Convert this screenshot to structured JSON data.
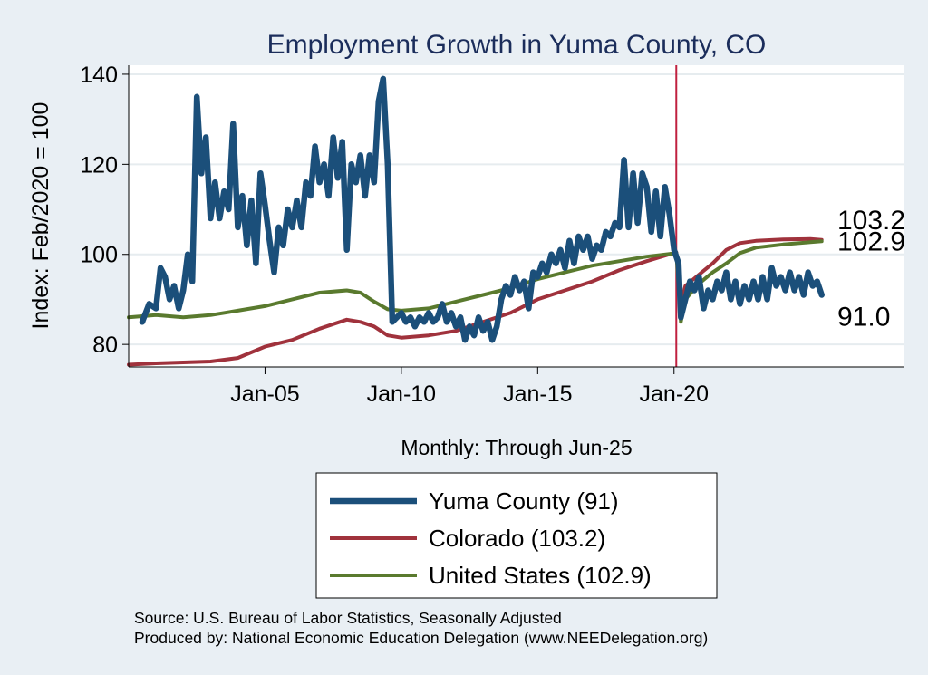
{
  "chart_data": {
    "type": "line",
    "title": "Employment Growth in Yuma  County, CO",
    "ylabel": "Index: Feb/2020 = 100",
    "xlabel": "Monthly: Through Jun-25",
    "ylim": [
      75,
      142
    ],
    "xlim": [
      "2000-01",
      "2028-06"
    ],
    "y_ticks": [
      80,
      100,
      120,
      140
    ],
    "x_ticks": [
      {
        "label": "Jan-05",
        "date": "2005-01"
      },
      {
        "label": "Jan-10",
        "date": "2010-01"
      },
      {
        "label": "Jan-15",
        "date": "2015-01"
      },
      {
        "label": "Jan-20",
        "date": "2020-01"
      }
    ],
    "grid": true,
    "reference_line": {
      "date": "2020-02",
      "color": "#c0203f"
    },
    "legend_position": "bottom",
    "series": [
      {
        "name": "Yuma  County (91)",
        "color": "#1b4f7a",
        "points": [
          [
            "2000-07",
            85
          ],
          [
            "2000-10",
            89
          ],
          [
            "2001-01",
            88
          ],
          [
            "2001-03",
            97
          ],
          [
            "2001-05",
            95
          ],
          [
            "2001-07",
            90
          ],
          [
            "2001-09",
            93
          ],
          [
            "2001-11",
            88
          ],
          [
            "2002-01",
            92
          ],
          [
            "2002-03",
            100
          ],
          [
            "2002-05",
            94
          ],
          [
            "2002-07",
            135
          ],
          [
            "2002-09",
            118
          ],
          [
            "2002-11",
            126
          ],
          [
            "2003-01",
            108
          ],
          [
            "2003-03",
            116
          ],
          [
            "2003-05",
            108
          ],
          [
            "2003-07",
            114
          ],
          [
            "2003-09",
            110
          ],
          [
            "2003-11",
            129
          ],
          [
            "2004-01",
            106
          ],
          [
            "2004-03",
            113
          ],
          [
            "2004-05",
            102
          ],
          [
            "2004-07",
            112
          ],
          [
            "2004-09",
            98
          ],
          [
            "2004-11",
            118
          ],
          [
            "2005-01",
            111
          ],
          [
            "2005-03",
            103
          ],
          [
            "2005-05",
            96
          ],
          [
            "2005-07",
            106
          ],
          [
            "2005-09",
            102
          ],
          [
            "2005-11",
            110
          ],
          [
            "2006-01",
            106
          ],
          [
            "2006-03",
            112
          ],
          [
            "2006-05",
            106
          ],
          [
            "2006-07",
            116
          ],
          [
            "2006-09",
            113
          ],
          [
            "2006-11",
            124
          ],
          [
            "2007-01",
            116
          ],
          [
            "2007-03",
            120
          ],
          [
            "2007-05",
            113
          ],
          [
            "2007-07",
            126
          ],
          [
            "2007-09",
            117
          ],
          [
            "2007-11",
            125
          ],
          [
            "2008-01",
            101
          ],
          [
            "2008-03",
            120
          ],
          [
            "2008-05",
            116
          ],
          [
            "2008-07",
            122
          ],
          [
            "2008-09",
            113
          ],
          [
            "2008-11",
            122
          ],
          [
            "2009-01",
            116
          ],
          [
            "2009-03",
            134
          ],
          [
            "2009-05",
            139
          ],
          [
            "2009-07",
            120
          ],
          [
            "2009-09",
            85
          ],
          [
            "2009-11",
            86
          ],
          [
            "2010-01",
            87
          ],
          [
            "2010-03",
            85
          ],
          [
            "2010-05",
            86
          ],
          [
            "2010-07",
            84
          ],
          [
            "2010-09",
            86
          ],
          [
            "2010-11",
            85
          ],
          [
            "2011-01",
            87
          ],
          [
            "2011-03",
            85
          ],
          [
            "2011-05",
            86
          ],
          [
            "2011-07",
            89
          ],
          [
            "2011-09",
            85
          ],
          [
            "2011-11",
            87
          ],
          [
            "2012-01",
            84
          ],
          [
            "2012-03",
            86
          ],
          [
            "2012-05",
            81
          ],
          [
            "2012-07",
            84
          ],
          [
            "2012-09",
            82
          ],
          [
            "2012-11",
            86
          ],
          [
            "2013-01",
            83
          ],
          [
            "2013-03",
            85
          ],
          [
            "2013-05",
            81
          ],
          [
            "2013-07",
            84
          ],
          [
            "2013-09",
            90
          ],
          [
            "2013-11",
            93
          ],
          [
            "2014-01",
            91
          ],
          [
            "2014-03",
            95
          ],
          [
            "2014-05",
            92
          ],
          [
            "2014-07",
            94
          ],
          [
            "2014-09",
            88
          ],
          [
            "2014-11",
            96
          ],
          [
            "2015-01",
            95
          ],
          [
            "2015-03",
            98
          ],
          [
            "2015-05",
            96
          ],
          [
            "2015-07",
            100
          ],
          [
            "2015-09",
            98
          ],
          [
            "2015-11",
            101
          ],
          [
            "2016-01",
            97
          ],
          [
            "2016-03",
            103
          ],
          [
            "2016-05",
            98
          ],
          [
            "2016-07",
            104
          ],
          [
            "2016-09",
            101
          ],
          [
            "2016-11",
            104
          ],
          [
            "2017-01",
            99
          ],
          [
            "2017-03",
            102
          ],
          [
            "2017-05",
            101
          ],
          [
            "2017-07",
            105
          ],
          [
            "2017-09",
            104
          ],
          [
            "2017-11",
            107
          ],
          [
            "2018-01",
            106
          ],
          [
            "2018-03",
            121
          ],
          [
            "2018-05",
            106
          ],
          [
            "2018-07",
            118
          ],
          [
            "2018-09",
            107
          ],
          [
            "2018-11",
            118
          ],
          [
            "2019-01",
            115
          ],
          [
            "2019-03",
            105
          ],
          [
            "2019-05",
            114
          ],
          [
            "2019-07",
            104
          ],
          [
            "2019-09",
            115
          ],
          [
            "2019-11",
            109
          ],
          [
            "2020-01",
            101
          ],
          [
            "2020-03",
            98
          ],
          [
            "2020-04",
            86
          ],
          [
            "2020-06",
            90
          ],
          [
            "2020-08",
            94
          ],
          [
            "2020-10",
            92
          ],
          [
            "2020-12",
            95
          ],
          [
            "2021-02",
            88
          ],
          [
            "2021-04",
            92
          ],
          [
            "2021-06",
            90
          ],
          [
            "2021-08",
            94
          ],
          [
            "2021-10",
            92
          ],
          [
            "2021-12",
            96
          ],
          [
            "2022-02",
            90
          ],
          [
            "2022-04",
            94
          ],
          [
            "2022-06",
            89
          ],
          [
            "2022-08",
            93
          ],
          [
            "2022-10",
            90
          ],
          [
            "2022-12",
            94
          ],
          [
            "2023-02",
            90
          ],
          [
            "2023-04",
            95
          ],
          [
            "2023-06",
            90
          ],
          [
            "2023-08",
            97
          ],
          [
            "2023-10",
            93
          ],
          [
            "2023-12",
            95
          ],
          [
            "2024-02",
            92
          ],
          [
            "2024-04",
            96
          ],
          [
            "2024-06",
            92
          ],
          [
            "2024-08",
            95
          ],
          [
            "2024-10",
            91
          ],
          [
            "2024-12",
            96
          ],
          [
            "2025-02",
            93
          ],
          [
            "2025-04",
            94
          ],
          [
            "2025-06",
            91
          ]
        ]
      },
      {
        "name": "Colorado (103.2)",
        "color": "#a0323c",
        "points": [
          [
            "2000-01",
            75.5
          ],
          [
            "2001-01",
            75.8
          ],
          [
            "2002-01",
            76
          ],
          [
            "2003-01",
            76.2
          ],
          [
            "2004-01",
            77
          ],
          [
            "2005-01",
            79.5
          ],
          [
            "2006-01",
            81
          ],
          [
            "2007-01",
            83.5
          ],
          [
            "2008-01",
            85.5
          ],
          [
            "2008-07",
            85
          ],
          [
            "2009-01",
            84
          ],
          [
            "2009-07",
            82
          ],
          [
            "2010-01",
            81.5
          ],
          [
            "2011-01",
            82
          ],
          [
            "2012-01",
            83
          ],
          [
            "2013-01",
            85
          ],
          [
            "2014-01",
            87
          ],
          [
            "2015-01",
            90
          ],
          [
            "2016-01",
            92
          ],
          [
            "2017-01",
            94
          ],
          [
            "2018-01",
            96.5
          ],
          [
            "2019-01",
            98.5
          ],
          [
            "2020-02",
            100.5
          ],
          [
            "2020-04",
            89
          ],
          [
            "2020-06",
            93
          ],
          [
            "2020-12",
            95.5
          ],
          [
            "2021-06",
            98
          ],
          [
            "2021-12",
            101
          ],
          [
            "2022-06",
            102.5
          ],
          [
            "2023-01",
            103
          ],
          [
            "2024-01",
            103.3
          ],
          [
            "2025-01",
            103.4
          ],
          [
            "2025-06",
            103.2
          ]
        ]
      },
      {
        "name": "United States (102.9)",
        "color": "#5a7a2e",
        "points": [
          [
            "2000-01",
            86
          ],
          [
            "2001-01",
            86.5
          ],
          [
            "2002-01",
            86
          ],
          [
            "2003-01",
            86.5
          ],
          [
            "2004-01",
            87.5
          ],
          [
            "2005-01",
            88.5
          ],
          [
            "2006-01",
            90
          ],
          [
            "2007-01",
            91.5
          ],
          [
            "2008-01",
            92
          ],
          [
            "2008-07",
            91.5
          ],
          [
            "2009-01",
            89.5
          ],
          [
            "2009-07",
            87.8
          ],
          [
            "2010-01",
            87.5
          ],
          [
            "2011-01",
            88
          ],
          [
            "2012-01",
            89.5
          ],
          [
            "2013-01",
            91
          ],
          [
            "2014-01",
            92.5
          ],
          [
            "2015-01",
            94.5
          ],
          [
            "2016-01",
            96
          ],
          [
            "2017-01",
            97.5
          ],
          [
            "2018-01",
            98.5
          ],
          [
            "2019-01",
            99.5
          ],
          [
            "2020-02",
            100.3
          ],
          [
            "2020-04",
            85
          ],
          [
            "2020-06",
            90
          ],
          [
            "2020-12",
            93.5
          ],
          [
            "2021-06",
            96
          ],
          [
            "2021-12",
            98
          ],
          [
            "2022-06",
            100.3
          ],
          [
            "2023-01",
            101.5
          ],
          [
            "2024-01",
            102.2
          ],
          [
            "2025-01",
            102.7
          ],
          [
            "2025-06",
            102.9
          ]
        ]
      }
    ],
    "end_labels": [
      {
        "text": "103.2",
        "value": 103.2
      },
      {
        "text": "102.9",
        "value": 102.9
      },
      {
        "text": "91.0",
        "value": 91.0
      }
    ]
  },
  "source": {
    "line1": "Source: U.S. Bureau of Labor Statistics, Seasonally Adjusted",
    "line2": "Produced by: National Economic Education Delegation (www.NEEDelegation.org)"
  }
}
